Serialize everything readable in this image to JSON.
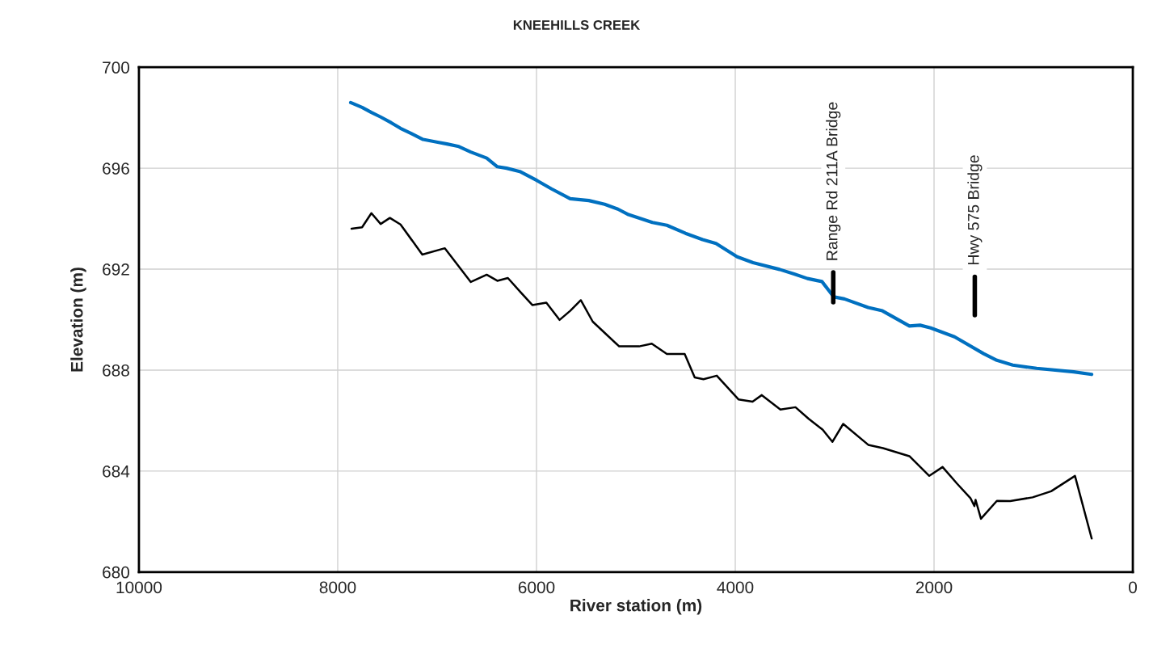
{
  "chart_data": {
    "type": "line",
    "title": "KNEEHILLS CREEK",
    "xlabel": "River station (m)",
    "ylabel": "Elevation (m)",
    "xlim": [
      10000,
      0
    ],
    "xticks": [
      10000,
      8000,
      6000,
      4000,
      2000,
      0
    ],
    "ylim": [
      680,
      700
    ],
    "yticks": [
      680,
      684,
      688,
      692,
      696,
      700
    ],
    "grid": true,
    "marker": "none",
    "line_style": "solid",
    "series": [
      {
        "color": "#0070c0",
        "x": [
          7870,
          7755,
          7661,
          7568,
          7461,
          7368,
          7261,
          7141,
          6994,
          6901,
          6781,
          6661,
          6501,
          6394,
          6301,
          6168,
          5994,
          5848,
          5661,
          5474,
          5314,
          5181,
          5074,
          4834,
          4688,
          4501,
          4328,
          4194,
          3981,
          3821,
          3554,
          3408,
          3274,
          3128,
          3008,
          2902,
          2662,
          2520,
          2248,
          2141,
          2034,
          1794,
          1501,
          1368,
          1208,
          968,
          594,
          414
        ],
        "values": [
          698.6,
          698.41,
          698.21,
          698.03,
          697.8,
          697.58,
          697.38,
          697.14,
          697.03,
          696.96,
          696.86,
          696.64,
          696.4,
          696.06,
          696.0,
          695.87,
          695.51,
          695.18,
          694.79,
          694.72,
          694.57,
          694.38,
          694.16,
          693.85,
          693.74,
          693.42,
          693.17,
          693.02,
          692.49,
          692.26,
          691.99,
          691.81,
          691.63,
          691.51,
          690.9,
          690.82,
          690.48,
          690.35,
          689.75,
          689.78,
          689.67,
          689.32,
          688.65,
          688.39,
          688.2,
          688.07,
          687.93,
          687.83
        ]
      },
      {
        "color": "#000000",
        "x": [
          7861,
          7755,
          7661,
          7568,
          7475,
          7368,
          7149,
          6922,
          6661,
          6501,
          6394,
          6288,
          6154,
          6042,
          5901,
          5768,
          5661,
          5554,
          5434,
          5168,
          4968,
          4840,
          4688,
          4509,
          4408,
          4320,
          4186,
          3968,
          3826,
          3733,
          3546,
          3394,
          3261,
          3120,
          3022,
          2914,
          2662,
          2514,
          2248,
          2048,
          1914,
          1768,
          1634,
          1594,
          1582,
          1528,
          1368,
          1234,
          1008,
          822,
          582,
          414
        ],
        "values": [
          693.6,
          693.66,
          694.22,
          693.79,
          694.03,
          693.77,
          692.58,
          692.83,
          691.49,
          691.78,
          691.54,
          691.65,
          691.06,
          690.58,
          690.67,
          689.99,
          690.35,
          690.77,
          689.92,
          688.94,
          688.94,
          689.05,
          688.64,
          688.64,
          687.71,
          687.64,
          687.78,
          686.84,
          686.75,
          687.01,
          686.44,
          686.53,
          686.07,
          685.64,
          685.16,
          685.87,
          685.04,
          684.91,
          684.59,
          683.81,
          684.16,
          683.5,
          682.93,
          682.61,
          682.86,
          682.11,
          682.82,
          682.81,
          682.96,
          683.2,
          683.81,
          681.33
        ]
      },
      {
        "color": "#000000",
        "x": [
          3014,
          3014
        ],
        "values": [
          691.87,
          690.69
        ]
      },
      {
        "color": "#000000",
        "x": [
          1590,
          1590
        ],
        "values": [
          691.7,
          690.18
        ]
      }
    ],
    "annotations": [
      {
        "text": "Range Rd 211A Bridge",
        "x": 3014,
        "y": 691.87
      },
      {
        "text": "Hwy 575 Bridge",
        "x": 1590,
        "y": 691.7
      }
    ]
  }
}
